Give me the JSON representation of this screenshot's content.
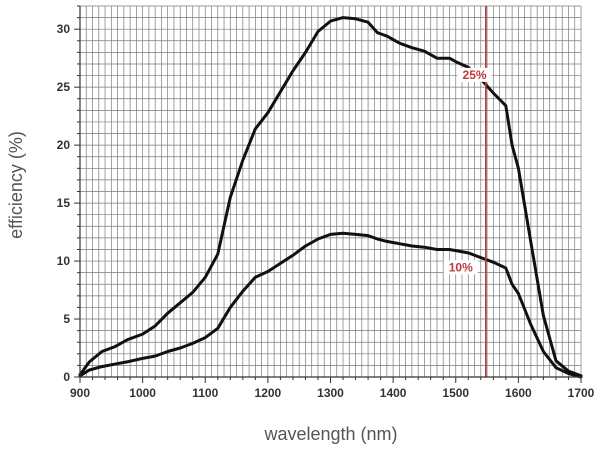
{
  "chart_data": {
    "type": "line",
    "title": "",
    "xlabel": "wavelength (nm)",
    "ylabel": "efficiency (%)",
    "xlim": [
      900,
      1700
    ],
    "ylim": [
      0,
      32
    ],
    "xticks": [
      900,
      1000,
      1100,
      1200,
      1300,
      1400,
      1500,
      1600,
      1700
    ],
    "yticks": [
      0,
      5,
      10,
      15,
      20,
      25,
      30
    ],
    "grid": true,
    "legend": "none",
    "series": [
      {
        "x": [
          900,
          915,
          935,
          955,
          975,
          1000,
          1020,
          1040,
          1060,
          1080,
          1100,
          1120,
          1140,
          1160,
          1180,
          1200,
          1220,
          1240,
          1260,
          1280,
          1300,
          1320,
          1340,
          1360,
          1375,
          1390,
          1410,
          1430,
          1450,
          1470,
          1490,
          1500,
          1520,
          1540,
          1560,
          1580,
          1590,
          1600,
          1620,
          1640,
          1660,
          1680,
          1700
        ],
        "y": [
          0.2,
          1.3,
          2.2,
          2.6,
          3.2,
          3.7,
          4.4,
          5.5,
          6.4,
          7.3,
          8.6,
          10.6,
          15.5,
          18.7,
          21.4,
          22.8,
          24.6,
          26.4,
          28.0,
          29.8,
          30.7,
          31.0,
          30.9,
          30.6,
          29.7,
          29.4,
          28.8,
          28.4,
          28.1,
          27.5,
          27.5,
          27.2,
          26.7,
          25.7,
          24.5,
          23.4,
          20.0,
          18.0,
          11.6,
          5.3,
          1.4,
          0.5,
          0.1
        ]
      },
      {
        "x": [
          900,
          915,
          935,
          955,
          975,
          1000,
          1020,
          1040,
          1060,
          1080,
          1100,
          1120,
          1140,
          1160,
          1180,
          1200,
          1220,
          1240,
          1260,
          1280,
          1300,
          1320,
          1340,
          1360,
          1375,
          1390,
          1410,
          1430,
          1450,
          1470,
          1490,
          1500,
          1520,
          1540,
          1560,
          1580,
          1590,
          1600,
          1620,
          1640,
          1660,
          1680,
          1700
        ],
        "y": [
          0.1,
          0.6,
          0.9,
          1.1,
          1.3,
          1.6,
          1.8,
          2.2,
          2.5,
          2.9,
          3.4,
          4.2,
          6.0,
          7.4,
          8.6,
          9.1,
          9.8,
          10.5,
          11.3,
          11.9,
          12.3,
          12.4,
          12.3,
          12.2,
          11.9,
          11.7,
          11.5,
          11.3,
          11.2,
          11.0,
          11.0,
          10.9,
          10.7,
          10.3,
          9.9,
          9.4,
          8.0,
          7.2,
          4.5,
          2.2,
          0.8,
          0.3,
          0.0
        ]
      }
    ],
    "marker": {
      "x": 1548,
      "color": "#c0393b",
      "labels": [
        {
          "text": "25%",
          "x": 1530,
          "y": 25.8
        },
        {
          "text": "10%",
          "x": 1508,
          "y": 9.2
        }
      ]
    },
    "colors": {
      "curve": "#111111",
      "grid": "#7a7a7a",
      "text": "#333333"
    }
  }
}
